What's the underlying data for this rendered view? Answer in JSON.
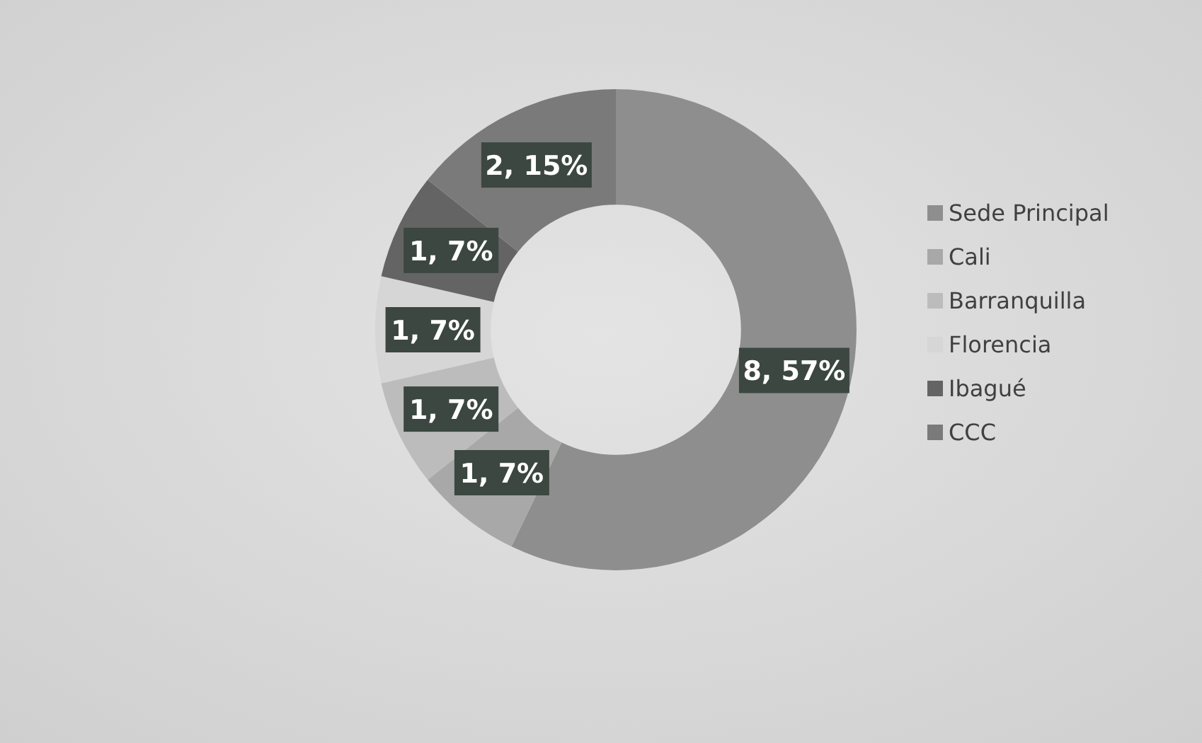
{
  "chart_data": {
    "type": "donut",
    "categories": [
      "Sede Principal",
      "Cali",
      "Barranquilla",
      "Florencia",
      "Ibagué",
      "CCC"
    ],
    "values": [
      8,
      1,
      1,
      1,
      1,
      2
    ],
    "colors": [
      "#8e8e8e",
      "#a8a8a8",
      "#bcbcbc",
      "#d6d6d6",
      "#646464",
      "#7a7a7a"
    ],
    "value_labels": [
      "8, 57%",
      "1, 7%",
      "1, 7%",
      "1, 7%",
      "1, 7%",
      "2, 15%"
    ],
    "legend": "right"
  }
}
